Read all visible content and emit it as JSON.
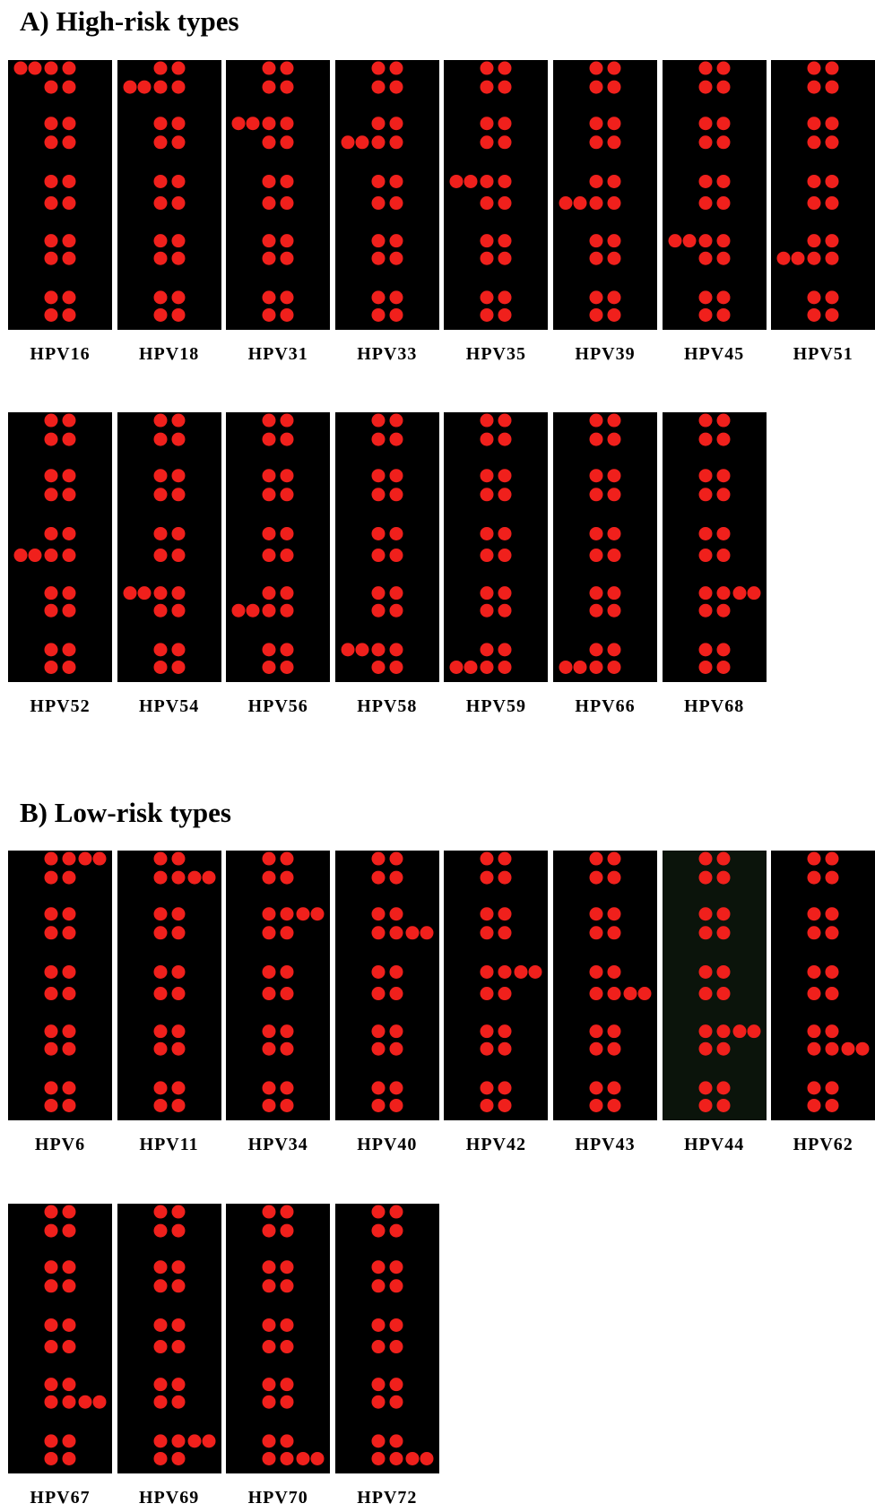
{
  "sections": [
    {
      "title": "A) High-risk types",
      "rows": [
        [
          "HPV16",
          "HPV18",
          "HPV31",
          "HPV33",
          "HPV35",
          "HPV39",
          "HPV45",
          "HPV51"
        ],
        [
          "HPV52",
          "HPV54",
          "HPV56",
          "HPV58",
          "HPV59",
          "HPV66",
          "HPV68"
        ]
      ]
    },
    {
      "title": "B) Low-risk types",
      "rows": [
        [
          "HPV6",
          "HPV11",
          "HPV34",
          "HPV40",
          "HPV42",
          "HPV43",
          "HPV44",
          "HPV62"
        ],
        [
          "HPV67",
          "HPV69",
          "HPV70",
          "HPV72"
        ]
      ]
    }
  ]
}
